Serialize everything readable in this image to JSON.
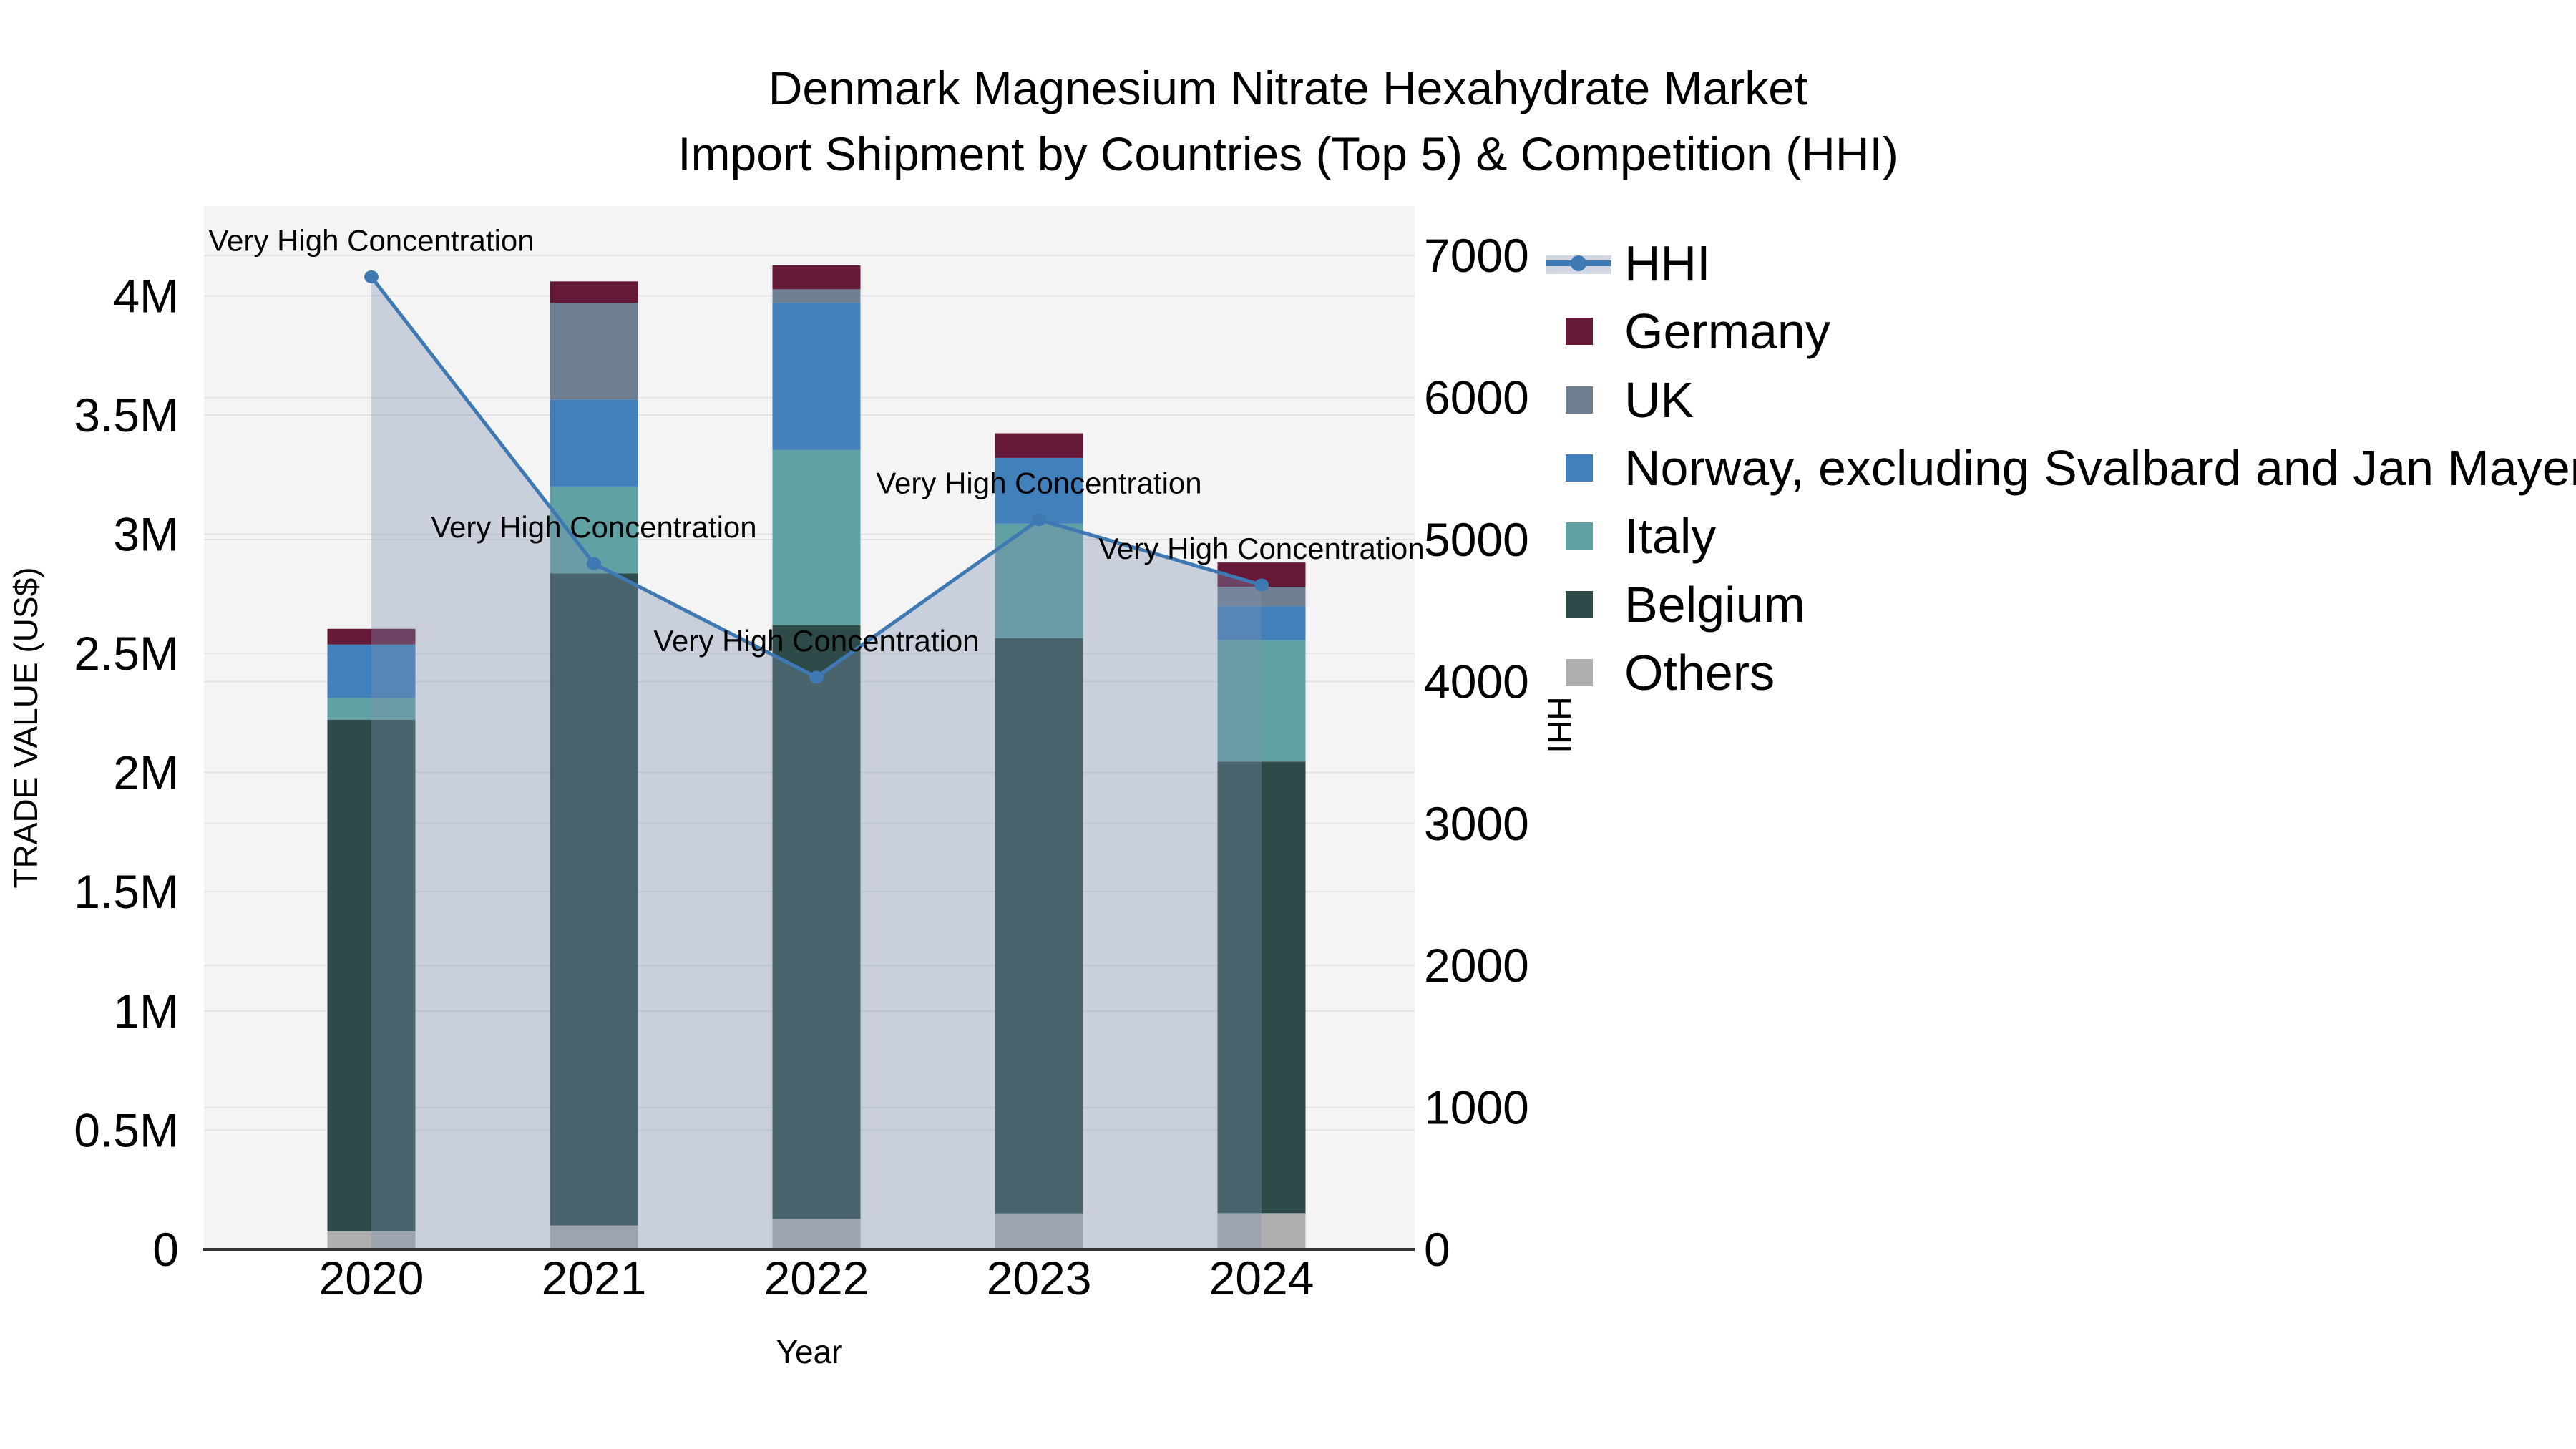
{
  "title": {
    "line1": "Denmark Magnesium Nitrate Hexahydrate Market",
    "line2": "Import Shipment by Countries (Top 5) & Competition (HHI)"
  },
  "chart_data": {
    "type": "stacked-bar+line-dual-axis",
    "categories": [
      "2020",
      "2021",
      "2022",
      "2023",
      "2024"
    ],
    "series": [
      {
        "name": "Germany",
        "color": "#661839",
        "values": [
          66000,
          90000,
          100000,
          103000,
          102000
        ]
      },
      {
        "name": "UK",
        "color": "#6F7F92",
        "values": [
          0,
          405000,
          57000,
          0,
          81000
        ]
      },
      {
        "name": "Norway, excluding Svalbard and Jan Mayen",
        "color": "#4180BB",
        "values": [
          225000,
          365000,
          617000,
          276000,
          143000
        ]
      },
      {
        "name": "Italy",
        "color": "#60A1A3",
        "values": [
          90000,
          365000,
          735000,
          480000,
          509000
        ]
      },
      {
        "name": "Belgium",
        "color": "#2E4B4A",
        "values": [
          2147000,
          2735000,
          2490000,
          2413000,
          1894000
        ]
      },
      {
        "name": "Others",
        "color": "#AFAFAF",
        "values": [
          75000,
          100000,
          128000,
          151000,
          152000
        ]
      }
    ],
    "stack_order_bottom_to_top": [
      "Others",
      "Belgium",
      "Italy",
      "Norway, excluding Svalbard and Jan Mayen",
      "UK",
      "Germany"
    ],
    "line_series": {
      "name": "HHI",
      "axis": "right",
      "color": "#3E79B4",
      "fill_color": "rgba(125,145,176,0.36)",
      "values": [
        6850,
        4830,
        4030,
        5140,
        4680
      ]
    },
    "annotations": [
      {
        "category": "2020",
        "text": "Very High Concentration"
      },
      {
        "category": "2021",
        "text": "Very High Concentration"
      },
      {
        "category": "2022",
        "text": "Very High Concentration"
      },
      {
        "category": "2023",
        "text": "Very High Concentration"
      },
      {
        "category": "2024",
        "text": "Very High Concentration"
      }
    ],
    "axes": {
      "x": {
        "title": "Year",
        "ticks": [
          "2020",
          "2021",
          "2022",
          "2023",
          "2024"
        ]
      },
      "y_left": {
        "title": "TRADE VALUE (US$)",
        "ticks": [
          "0",
          "0.5M",
          "1M",
          "1.5M",
          "2M",
          "2.5M",
          "3M",
          "3.5M",
          "4M"
        ],
        "tick_values": [
          0,
          500000,
          1000000,
          1500000,
          2000000,
          2500000,
          3000000,
          3500000,
          4000000
        ],
        "range": [
          0,
          4380000
        ],
        "grid": true
      },
      "y_right": {
        "title": "HHI",
        "ticks": [
          "0",
          "1000",
          "2000",
          "3000",
          "4000",
          "5000",
          "6000",
          "7000"
        ],
        "tick_values": [
          0,
          1000,
          2000,
          3000,
          4000,
          5000,
          6000,
          7000
        ],
        "range": [
          0,
          7350
        ],
        "grid": true
      }
    },
    "legend": [
      "HHI",
      "Germany",
      "UK",
      "Norway, excluding Svalbard and Jan Mayen",
      "Italy",
      "Belgium",
      "Others"
    ],
    "legend_position": "right",
    "plot_colors": {
      "background": "#F4F4F4",
      "gridline": "#E3E3E3",
      "axis_line": "#333333",
      "text": "#000000"
    }
  }
}
